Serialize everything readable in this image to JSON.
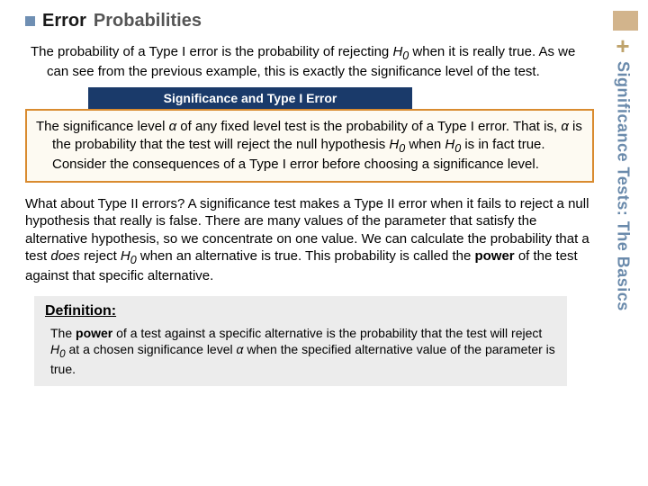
{
  "title": {
    "bold": "Error",
    "rest": "Probabilities"
  },
  "para1_a": "The probability of a Type I error is the probability of rejecting ",
  "para1_H0": "H",
  "para1_b": " when it is really true. As we can see from the previous example, this is exactly the significance level of the test.",
  "banner": "Significance and Type I Error",
  "callout_a": "The significance level ",
  "callout_alpha": "α",
  "callout_b": " of any fixed level test is the probability of a Type I error. That is, ",
  "callout_c": " is the probability that the test will reject the null hypothesis ",
  "callout_d": " when ",
  "callout_e": " is in fact true. Consider the consequences of a Type I error before choosing a significance level.",
  "para2_a": "What about Type II errors? A significance test makes a Type II error when it fails to reject a null hypothesis that really is false. There are many values of the parameter that satisfy the alternative hypothesis, so we concentrate on one value. We can calculate the probability that a test ",
  "para2_does": "does",
  "para2_b": " reject ",
  "para2_c": " when an alternative is true. This probability is called the ",
  "para2_power": "power",
  "para2_d": " of the test against that specific alternative.",
  "def_title": "Definition:",
  "def_a": "The ",
  "def_power": "power",
  "def_b": " of a test against a specific alternative is the probability that the test will reject ",
  "def_c": " at a chosen significance level ",
  "def_d": " when the specified alternative value of the parameter is true.",
  "sidebar_plus": "+",
  "sidebar_text": "Significance Tests: The Basics",
  "colors": {
    "bullet": "#6f8fb3",
    "banner_bg": "#1a3a6a",
    "callout_border": "#d98b2f",
    "callout_bg": "#fdfaf2",
    "defbox_bg": "#ececec",
    "corner": "#d2b48c",
    "plus": "#bfa36b",
    "vtext": "#6a8aab"
  }
}
